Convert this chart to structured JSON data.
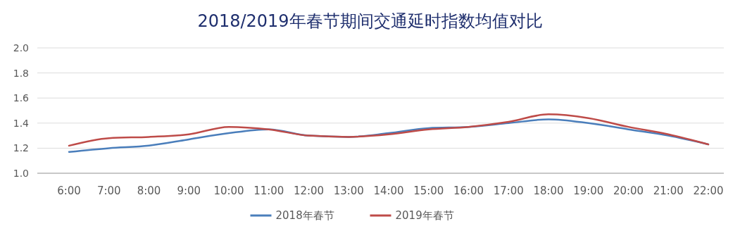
{
  "chart_data": {
    "type": "line",
    "title": "2018/2019年春节期间交通延时指数均值对比",
    "categories": [
      "6:00",
      "7:00",
      "8:00",
      "9:00",
      "10:00",
      "11:00",
      "12:00",
      "13:00",
      "14:00",
      "15:00",
      "16:00",
      "17:00",
      "18:00",
      "19:00",
      "20:00",
      "21:00",
      "22:00"
    ],
    "series": [
      {
        "name": "2018年春节",
        "color": "#4a7ebb",
        "values": [
          1.17,
          1.2,
          1.22,
          1.27,
          1.32,
          1.35,
          1.3,
          1.29,
          1.32,
          1.36,
          1.37,
          1.4,
          1.43,
          1.4,
          1.35,
          1.3,
          1.23
        ]
      },
      {
        "name": "2019年春节",
        "color": "#be4b48",
        "values": [
          1.22,
          1.28,
          1.29,
          1.31,
          1.37,
          1.35,
          1.3,
          1.29,
          1.31,
          1.35,
          1.37,
          1.41,
          1.47,
          1.44,
          1.37,
          1.31,
          1.23
        ]
      }
    ],
    "ylim": [
      1.0,
      2.0
    ],
    "yticks": [
      {
        "value": 1,
        "label": "1.0"
      },
      1.2,
      1.4,
      1.6,
      1.8,
      {
        "value": 2,
        "label": "2.0"
      }
    ],
    "grid": "y",
    "legend": "bottom",
    "marker": "none",
    "line_style": "solid"
  }
}
